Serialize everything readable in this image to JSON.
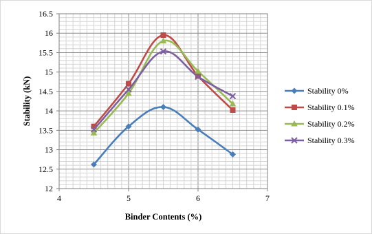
{
  "chart_data": {
    "type": "line",
    "title": "",
    "xlabel": "Binder Contents (%)",
    "ylabel": "Stability (kN)",
    "xlim": [
      4,
      7
    ],
    "ylim": [
      12,
      16.5
    ],
    "xticks": [
      "4",
      "5",
      "6",
      "7"
    ],
    "yticks": [
      "12",
      "12.5",
      "13",
      "13.5",
      "14",
      "14.5",
      "15",
      "15.5",
      "16",
      "16.5"
    ],
    "grid": true,
    "legend_position": "right",
    "x": [
      4.5,
      5.0,
      5.5,
      6.0,
      6.5
    ],
    "series": [
      {
        "name": "Stability 0%",
        "color": "#4a7ebb",
        "marker": "diamond",
        "values": [
          12.62,
          13.6,
          14.1,
          13.52,
          12.88
        ]
      },
      {
        "name": "Stability 0.1%",
        "color": "#be4b48",
        "marker": "square",
        "values": [
          13.6,
          14.7,
          15.95,
          14.9,
          14.02
        ]
      },
      {
        "name": "Stability 0.2%",
        "color": "#98b954",
        "marker": "triangle",
        "values": [
          13.43,
          14.45,
          15.8,
          15.02,
          14.18
        ]
      },
      {
        "name": "Stability 0.3%",
        "color": "#7d5fa0",
        "marker": "x",
        "values": [
          13.52,
          14.55,
          15.53,
          14.88,
          14.38
        ]
      }
    ]
  }
}
